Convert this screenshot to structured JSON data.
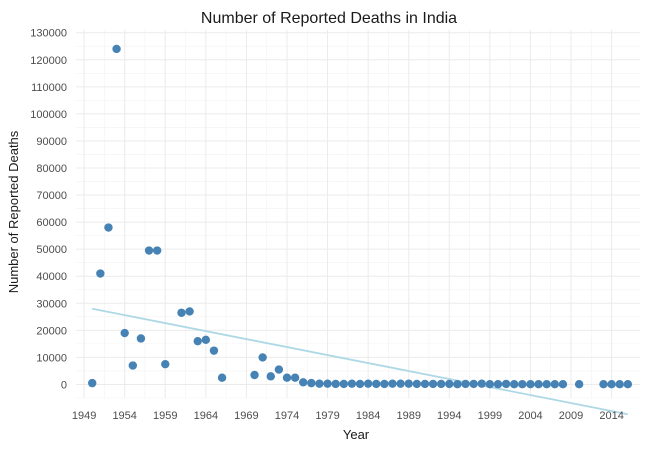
{
  "chart_data": {
    "type": "scatter",
    "title": "Number of Reported Deaths in India",
    "xlabel": "Year",
    "ylabel": "Number of Reported Deaths",
    "xlim": [
      1948,
      2017.5
    ],
    "ylim": [
      -5000,
      131000
    ],
    "x_ticks": [
      1949,
      1954,
      1959,
      1964,
      1969,
      1974,
      1979,
      1984,
      1989,
      1994,
      1999,
      2004,
      2009,
      2014
    ],
    "y_ticks": [
      0,
      10000,
      20000,
      30000,
      40000,
      50000,
      60000,
      70000,
      80000,
      90000,
      100000,
      110000,
      120000,
      130000
    ],
    "grid": true,
    "point_color": "#4682B4",
    "trend_color": "#ADD8E6",
    "trend_line": {
      "x": [
        1950,
        2016
      ],
      "y": [
        28000,
        -11000
      ]
    },
    "series": [
      {
        "x": [
          1950,
          1951,
          1952,
          1953,
          1954,
          1955,
          1956,
          1957,
          1958,
          1959,
          1961,
          1962,
          1963,
          1964,
          1965,
          1966,
          1970,
          1971,
          1972,
          1973,
          1974,
          1975,
          1976,
          1977,
          1978,
          1979,
          1980,
          1981,
          1982,
          1983,
          1984,
          1985,
          1986,
          1987,
          1988,
          1989,
          1990,
          1991,
          1992,
          1993,
          1994,
          1995,
          1996,
          1997,
          1998,
          1999,
          2000,
          2001,
          2002,
          2003,
          2004,
          2005,
          2006,
          2007,
          2008,
          2010,
          2013,
          2014,
          2015,
          2016
        ],
        "y": [
          500,
          41000,
          58000,
          124000,
          19000,
          7000,
          17000,
          49500,
          49500,
          7500,
          26500,
          27000,
          16000,
          16500,
          12500,
          2500,
          3500,
          10000,
          3000,
          5500,
          2500,
          2500,
          800,
          500,
          300,
          300,
          200,
          200,
          300,
          200,
          300,
          200,
          200,
          300,
          300,
          300,
          200,
          200,
          200,
          200,
          200,
          100,
          200,
          200,
          300,
          100,
          100,
          200,
          100,
          100,
          100,
          100,
          100,
          100,
          100,
          100,
          100,
          100,
          100,
          100
        ]
      }
    ]
  }
}
